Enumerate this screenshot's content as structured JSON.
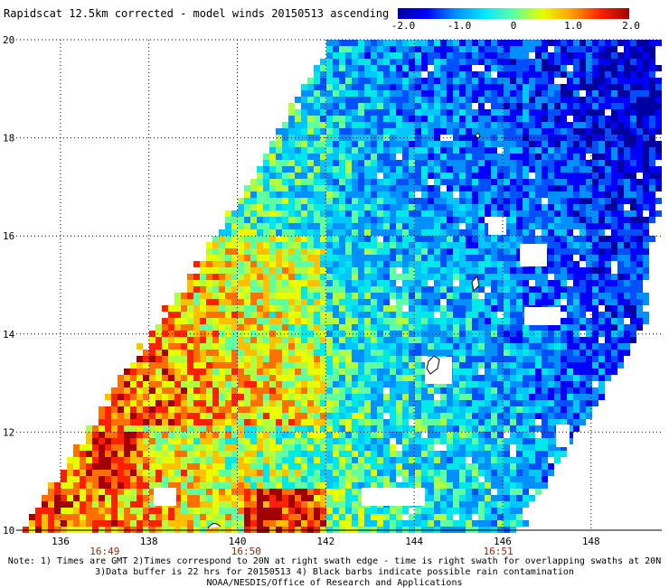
{
  "title": "Rapidscat 12.5km corrected - model winds 20150513 ascending",
  "colorbar": {
    "labels": [
      "-2.0",
      "-1.0",
      "0",
      "1.0",
      "2.0"
    ],
    "values": [
      -2.0,
      -1.0,
      0,
      1.0,
      2.0
    ],
    "colors": [
      "#0000a0",
      "#0000ff",
      "#0090ff",
      "#00e8ff",
      "#60ffa0",
      "#e8ff00",
      "#ffa000",
      "#ff2000",
      "#a00000"
    ]
  },
  "axes": {
    "lon_ticks": [
      "136",
      "138",
      "140",
      "142",
      "144",
      "146",
      "148"
    ],
    "lat_ticks": [
      "20",
      "18",
      "16",
      "14",
      "12",
      "10"
    ],
    "time_labels": [
      {
        "lon": 137.0,
        "label": "16:49"
      },
      {
        "lon": 140.2,
        "label": "16:50"
      },
      {
        "lon": 145.9,
        "label": "16:51"
      }
    ],
    "lon_range": [
      135.0,
      149.6
    ],
    "lat_range": [
      10.0,
      20.0
    ]
  },
  "notes": {
    "line1": "Note: 1) Times are GMT 2)Times correspond to 20N at right swath edge - time is right swath for overlapping swaths at 20N",
    "line2": "3)Data buffer is 22 hrs for 20150513 4) Black barbs indicate possible rain contamination",
    "line3": "NOAA/NESDIS/Office of Research and Applications"
  }
}
